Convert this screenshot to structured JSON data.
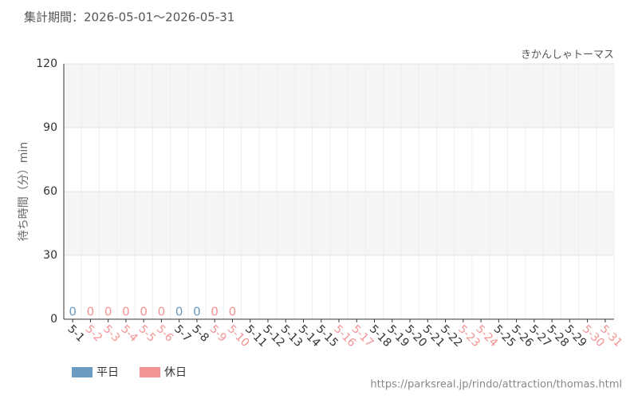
{
  "chart_data": {
    "type": "bar",
    "title": "集計期間：2026-05-01～2026-05-31",
    "subtitle": "きかんしゃトーマス",
    "y_label": "待ち時間（分）min",
    "footer": "https://parksreal.jp/rindo/attraction/thomas.html",
    "categories": [
      "5-1",
      "5-2",
      "5-3",
      "5-4",
      "5-5",
      "5-6",
      "5-7",
      "5-8",
      "5-9",
      "5-10",
      "5-11",
      "5-12",
      "5-13",
      "5-14",
      "5-15",
      "5-16",
      "5-17",
      "5-18",
      "5-19",
      "5-20",
      "5-21",
      "5-22",
      "5-23",
      "5-24",
      "5-25",
      "5-26",
      "5-27",
      "5-28",
      "5-29",
      "5-30",
      "5-31"
    ],
    "values": [
      0,
      0,
      0,
      0,
      0,
      0,
      0,
      0,
      0,
      0,
      null,
      null,
      null,
      null,
      null,
      null,
      null,
      null,
      null,
      null,
      null,
      null,
      null,
      null,
      null,
      null,
      null,
      null,
      null,
      null,
      null
    ],
    "category_colors": [
      "#6a9bc3",
      "#f39393",
      "#f39393",
      "#f39393",
      "#f39393",
      "#f39393",
      "#6a9bc3",
      "#6a9bc3",
      "#f39393",
      "#f39393",
      "#6a9bc3",
      "#6a9bc3",
      "#6a9bc3",
      "#6a9bc3",
      "#6a9bc3",
      "#f39393",
      "#f39393",
      "#6a9bc3",
      "#6a9bc3",
      "#6a9bc3",
      "#6a9bc3",
      "#6a9bc3",
      "#f39393",
      "#f39393",
      "#6a9bc3",
      "#6a9bc3",
      "#6a9bc3",
      "#6a9bc3",
      "#6a9bc3",
      "#f39393",
      "#f39393"
    ],
    "legend": [
      {
        "name": "平日",
        "color": "#6a9bc3"
      },
      {
        "name": "休日",
        "color": "#f39393"
      }
    ],
    "ylim": [
      0,
      120
    ],
    "yticks": [
      0,
      30,
      60,
      90,
      120
    ],
    "grid": true
  }
}
